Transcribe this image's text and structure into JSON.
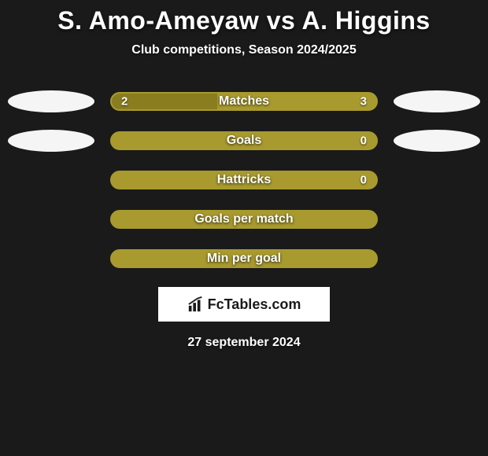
{
  "title": "S. Amo-Ameyaw vs A. Higgins",
  "subtitle": "Club competitions, Season 2024/2025",
  "date": "27 september 2024",
  "logo_text": "FcTables.com",
  "colors": {
    "background": "#1a1a1a",
    "bar_border": "#a89a2e",
    "bar_fill": "#a89a2e",
    "oval": "#f5f5f5",
    "text": "#ffffff"
  },
  "stats": [
    {
      "label": "Matches",
      "left_value": "2",
      "right_value": "3",
      "left_percent": 40,
      "show_ovals": true
    },
    {
      "label": "Goals",
      "left_value": "",
      "right_value": "0",
      "left_percent": 0,
      "show_ovals": true
    },
    {
      "label": "Hattricks",
      "left_value": "",
      "right_value": "0",
      "left_percent": 0,
      "show_ovals": false
    },
    {
      "label": "Goals per match",
      "left_value": "",
      "right_value": "",
      "left_percent": 0,
      "show_ovals": false
    },
    {
      "label": "Min per goal",
      "left_value": "",
      "right_value": "",
      "left_percent": 0,
      "show_ovals": false
    }
  ]
}
